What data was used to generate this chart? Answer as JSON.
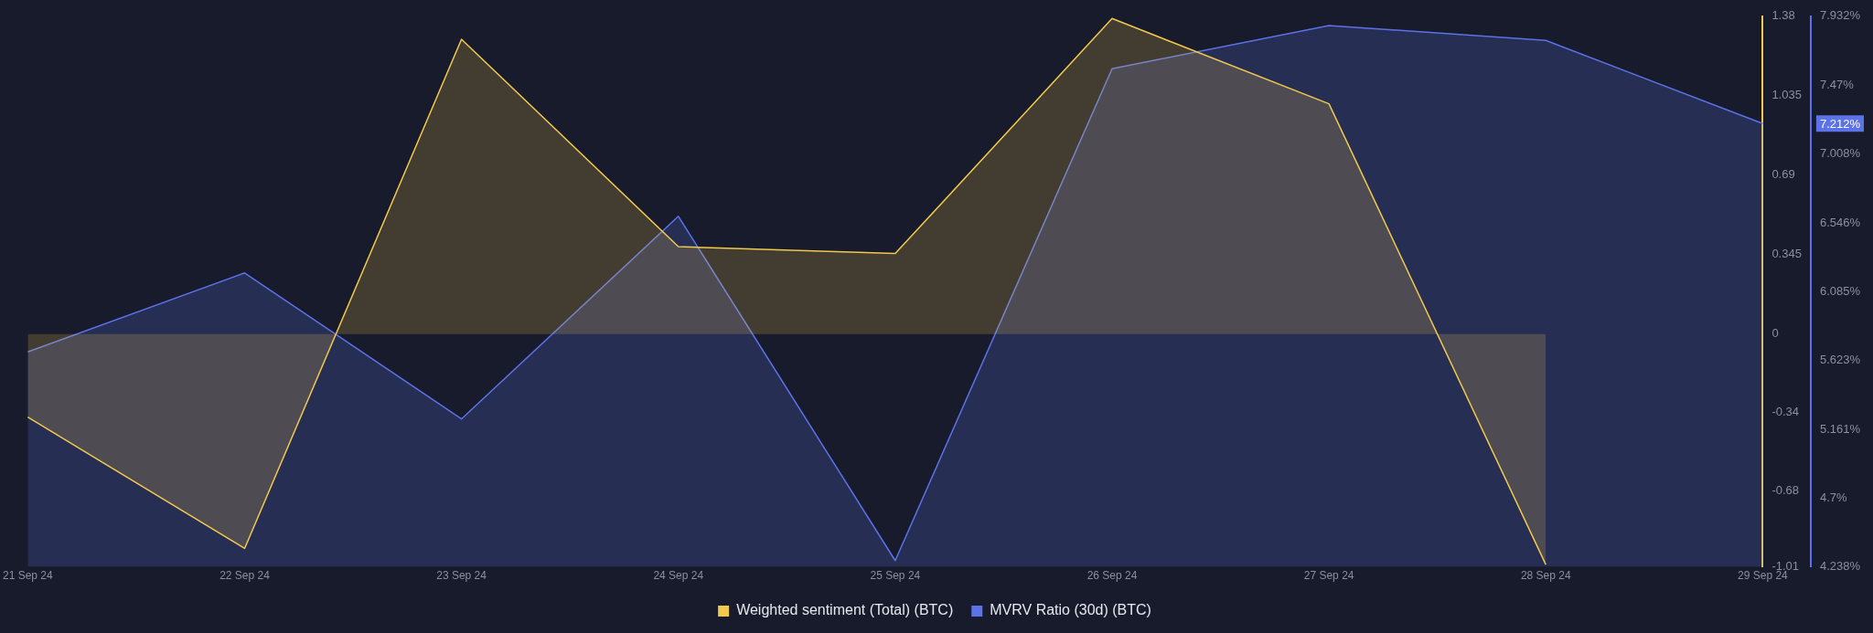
{
  "chart_data": {
    "type": "area",
    "categories": [
      "21 Sep 24",
      "22 Sep 24",
      "23 Sep 24",
      "24 Sep 24",
      "25 Sep 24",
      "26 Sep 24",
      "27 Sep 24",
      "28 Sep 24",
      "29 Sep 24"
    ],
    "series": [
      {
        "name": "Weighted sentiment (Total) (BTC)",
        "color": "#f2c94c",
        "axis": "y",
        "values": [
          -0.36,
          -0.93,
          1.28,
          0.38,
          0.35,
          1.37,
          1.0,
          -1.0,
          null
        ]
      },
      {
        "name": "MVRV Ratio (30d) (BTC)",
        "color": "#5b72e8",
        "axis": "y2",
        "values": [
          5.68,
          6.21,
          5.23,
          6.59,
          4.28,
          7.58,
          7.87,
          7.77,
          7.212
        ]
      }
    ],
    "ylim": [
      -1.01,
      1.38
    ],
    "yticks": [
      -1.01,
      -0.68,
      -0.34,
      0,
      0.345,
      0.69,
      1.035,
      1.38
    ],
    "y2lim": [
      4.238,
      7.932
    ],
    "y2ticks": [
      {
        "value": 4.238,
        "label": "4.238%"
      },
      {
        "value": 4.7,
        "label": "4.7%"
      },
      {
        "value": 5.161,
        "label": "5.161%"
      },
      {
        "value": 5.623,
        "label": "5.623%"
      },
      {
        "value": 6.085,
        "label": "6.085%"
      },
      {
        "value": 6.546,
        "label": "6.546%"
      },
      {
        "value": 7.008,
        "label": "7.008%"
      },
      {
        "value": 7.47,
        "label": "7.47%"
      },
      {
        "value": 7.932,
        "label": "7.932%"
      }
    ],
    "annotations": [
      "7.212%"
    ],
    "legend": "bottom",
    "grid": false
  }
}
